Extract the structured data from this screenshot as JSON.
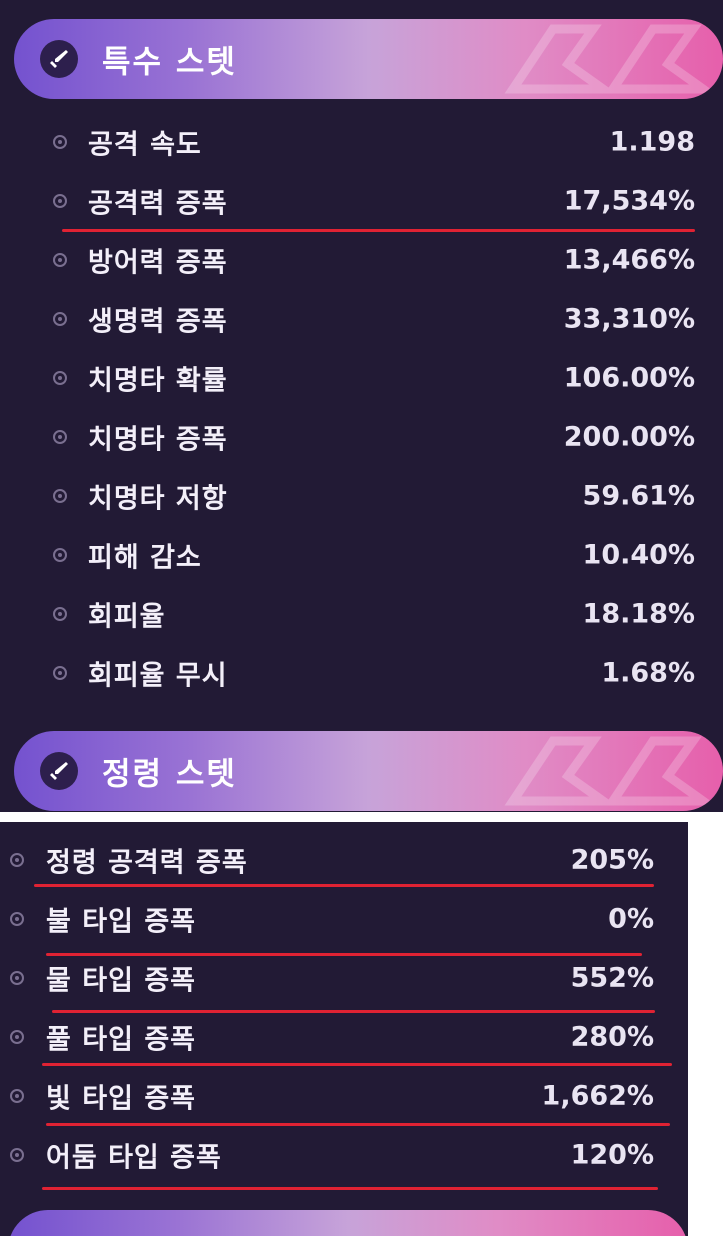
{
  "special_stats": {
    "title": "특수 스텟",
    "icon": "sword-icon",
    "rows": [
      {
        "label": "공격 속도",
        "value": "1.198"
      },
      {
        "label": "공격력 증폭",
        "value": "17,534%"
      },
      {
        "label": "방어력 증폭",
        "value": "13,466%"
      },
      {
        "label": "생명력 증폭",
        "value": "33,310%"
      },
      {
        "label": "치명타 확률",
        "value": "106.00%"
      },
      {
        "label": "치명타 증폭",
        "value": "200.00%"
      },
      {
        "label": "치명타 저항",
        "value": "59.61%"
      },
      {
        "label": "피해 감소",
        "value": "10.40%"
      },
      {
        "label": "회피율",
        "value": "18.18%"
      },
      {
        "label": "회피율 무시",
        "value": "1.68%"
      }
    ]
  },
  "spirit_stats": {
    "title": "정령 스텟",
    "icon": "sword-icon",
    "rows": [
      {
        "label": "정령 공격력 증폭",
        "value": "205%"
      },
      {
        "label": "불 타입 증폭",
        "value": "0%"
      },
      {
        "label": "물 타입 증폭",
        "value": "552%"
      },
      {
        "label": "풀 타입 증폭",
        "value": "280%"
      },
      {
        "label": "빛 타입 증폭",
        "value": "1,662%"
      },
      {
        "label": "어둠 타입 증폭",
        "value": "120%"
      }
    ]
  },
  "colors": {
    "panel_bg": "#221a35",
    "header_gradient_start": "#7452cf",
    "header_gradient_end": "#e65fab",
    "underline": "#e02233"
  }
}
